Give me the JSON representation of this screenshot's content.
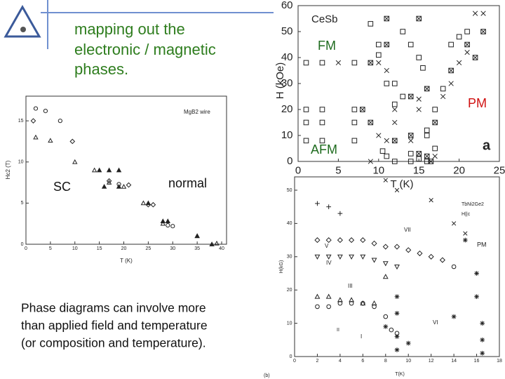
{
  "slide": {
    "title_lines": [
      "mapping out the",
      "electronic / magnetic",
      "phases."
    ],
    "caption_lines": [
      "Phase diagrams can involve more",
      "than applied field and temperature",
      "(or composition and temperature)."
    ],
    "labels": [
      "FM",
      "PM",
      "AFM",
      "SC",
      "normal"
    ]
  },
  "chart_data": [
    {
      "type": "scatter",
      "xlabel": "T (K)",
      "ylabel": "Hc2 (T)",
      "annotations": [
        "MgB2 wire"
      ],
      "xlim": [
        0,
        41
      ],
      "xticks": [
        0,
        5,
        10,
        15,
        20,
        25,
        30,
        35,
        40
      ],
      "ylim": [
        0,
        18
      ],
      "yticks": [
        0,
        5,
        10,
        15
      ],
      "series": [
        {
          "marker": "circle",
          "x": [
            2,
            4,
            7,
            19,
            29,
            30
          ],
          "values": [
            16.5,
            16.2,
            15,
            7.3,
            2.3,
            2.2
          ]
        },
        {
          "marker": "diamond",
          "x": [
            1.5,
            9.5,
            17,
            21,
            25,
            26
          ],
          "values": [
            15,
            12.5,
            7.7,
            7.2,
            4.8,
            4.8
          ]
        },
        {
          "marker": "tri-up",
          "x": [
            2,
            5,
            10,
            14,
            17,
            20,
            24,
            28,
            35,
            39
          ],
          "values": [
            13,
            12.6,
            10,
            9,
            7.5,
            7,
            5,
            2.5,
            1,
            0.1
          ]
        },
        {
          "marker": "filled",
          "x": [
            15,
            17,
            19,
            16,
            19,
            25,
            28,
            29,
            35,
            38
          ],
          "values": [
            9,
            9,
            9,
            7,
            7,
            5,
            2.8,
            2.8,
            1,
            0
          ]
        }
      ]
    },
    {
      "type": "scatter",
      "xlabel": "T (K)",
      "ylabel": "H (kOe)",
      "annotations": [
        "CeSb",
        "a"
      ],
      "xlim": [
        0,
        25
      ],
      "xticks": [
        0,
        5,
        10,
        15,
        20,
        25
      ],
      "ylim": [
        0,
        60
      ],
      "yticks": [
        0,
        10,
        20,
        30,
        40,
        50,
        60
      ],
      "series": [
        {
          "marker": "square",
          "x": [
            1,
            3,
            1,
            3,
            1,
            3,
            1,
            3,
            7,
            7,
            7,
            7,
            9,
            10,
            10,
            11,
            12,
            12,
            13,
            13,
            14,
            15,
            15.5,
            16,
            16,
            17,
            17,
            18,
            19,
            20,
            21,
            10.5,
            11,
            12,
            14,
            14,
            15,
            16
          ],
          "values": [
            38,
            38,
            20,
            20,
            15,
            15,
            8,
            8,
            38,
            20,
            15,
            8,
            53,
            41,
            45,
            30,
            22,
            30,
            25,
            50,
            45,
            40,
            36,
            10,
            12,
            5,
            20,
            28,
            45,
            48,
            50,
            4,
            2,
            0,
            0,
            3,
            1,
            0
          ]
        },
        {
          "marker": "cross",
          "x": [
            5,
            10,
            11,
            12,
            12,
            14,
            15,
            15,
            18,
            19,
            20,
            21,
            22,
            23,
            11,
            10,
            9,
            17
          ],
          "values": [
            38,
            38,
            35,
            20,
            15,
            8,
            20,
            24,
            25,
            30,
            38,
            42,
            57,
            57,
            8,
            10,
            0,
            2
          ]
        },
        {
          "marker": "boxcross",
          "x": [
            8,
            9,
            9,
            11,
            11,
            12,
            14,
            15,
            16,
            17,
            19,
            21,
            22,
            23,
            14,
            16,
            16.5,
            15
          ],
          "values": [
            20,
            15,
            38,
            45,
            55,
            8,
            25,
            55,
            28,
            15,
            35,
            45,
            40,
            50,
            10,
            2,
            0,
            3
          ]
        }
      ]
    },
    {
      "type": "scatter",
      "xlabel": "T(K)",
      "ylabel": "H(kG)",
      "annotations": [
        "TbNi2Ge2",
        "H||c",
        "PM",
        "I",
        "II",
        "III",
        "IV",
        "V",
        "VI",
        "VII",
        "(b)"
      ],
      "xlim": [
        0,
        18
      ],
      "xticks": [
        0,
        2,
        4,
        6,
        8,
        10,
        12,
        14,
        16,
        18
      ],
      "ylim": [
        0,
        54
      ],
      "yticks": [
        0,
        10,
        20,
        30,
        40,
        50
      ],
      "series": [
        {
          "marker": "plus",
          "x": [
            2,
            3,
            4
          ],
          "values": [
            46,
            45,
            43
          ]
        },
        {
          "marker": "cross",
          "x": [
            8,
            9,
            12,
            14,
            15
          ],
          "values": [
            53,
            50,
            47,
            40,
            37
          ]
        },
        {
          "marker": "diamond",
          "x": [
            2,
            3,
            4,
            5,
            6,
            7,
            8,
            9,
            10,
            11,
            12,
            13
          ],
          "values": [
            35,
            35,
            35,
            35,
            35,
            34,
            33,
            33,
            32,
            31,
            30,
            29
          ]
        },
        {
          "marker": "tri-down",
          "x": [
            2,
            3,
            4,
            5,
            6,
            7,
            8,
            9
          ],
          "values": [
            30,
            30,
            30,
            30,
            30,
            29,
            28,
            27
          ]
        },
        {
          "marker": "tri-up",
          "x": [
            2,
            3,
            4,
            5,
            6,
            7,
            8
          ],
          "values": [
            18,
            18,
            17,
            17,
            16,
            16,
            24
          ]
        },
        {
          "marker": "circle",
          "x": [
            2,
            3,
            4,
            5,
            6,
            7,
            8,
            8.5,
            9,
            14
          ],
          "values": [
            15,
            15,
            16,
            16,
            16,
            15,
            12,
            8,
            7,
            27
          ]
        },
        {
          "marker": "asterisk",
          "x": [
            8,
            9,
            9,
            10,
            14,
            15,
            16,
            16,
            16.5,
            16.5,
            16.5,
            9,
            9
          ],
          "values": [
            9,
            6,
            2,
            4,
            12,
            35,
            25,
            18,
            10,
            5,
            1,
            18,
            13
          ]
        }
      ]
    }
  ]
}
